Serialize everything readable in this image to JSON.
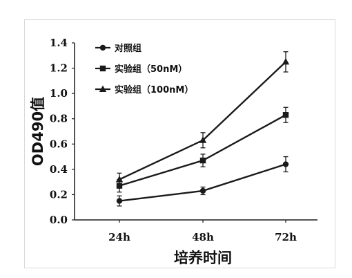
{
  "chart_data": {
    "type": "line",
    "categories": [
      "24h",
      "48h",
      "72h"
    ],
    "yticks": [
      "0.0",
      "0.2",
      "0.4",
      "0.6",
      "0.8",
      "1.0",
      "1.2",
      "1.4"
    ],
    "ylim": [
      0,
      1.4
    ],
    "xlabel": "培养时间",
    "ylabel": "OD490值",
    "legend_position": "top-left",
    "grid": false,
    "series": [
      {
        "name": "对照组",
        "marker": "circle",
        "values": [
          0.15,
          0.23,
          0.44
        ],
        "errors": [
          0.04,
          0.03,
          0.06
        ]
      },
      {
        "name": "实验组（50nM）",
        "marker": "square",
        "values": [
          0.27,
          0.47,
          0.83
        ],
        "errors": [
          0.05,
          0.05,
          0.06
        ]
      },
      {
        "name": "实验组（100nM）",
        "marker": "triangle",
        "values": [
          0.32,
          0.63,
          1.25
        ],
        "errors": [
          0.05,
          0.06,
          0.08
        ]
      }
    ],
    "color": "#1a1a1a"
  }
}
